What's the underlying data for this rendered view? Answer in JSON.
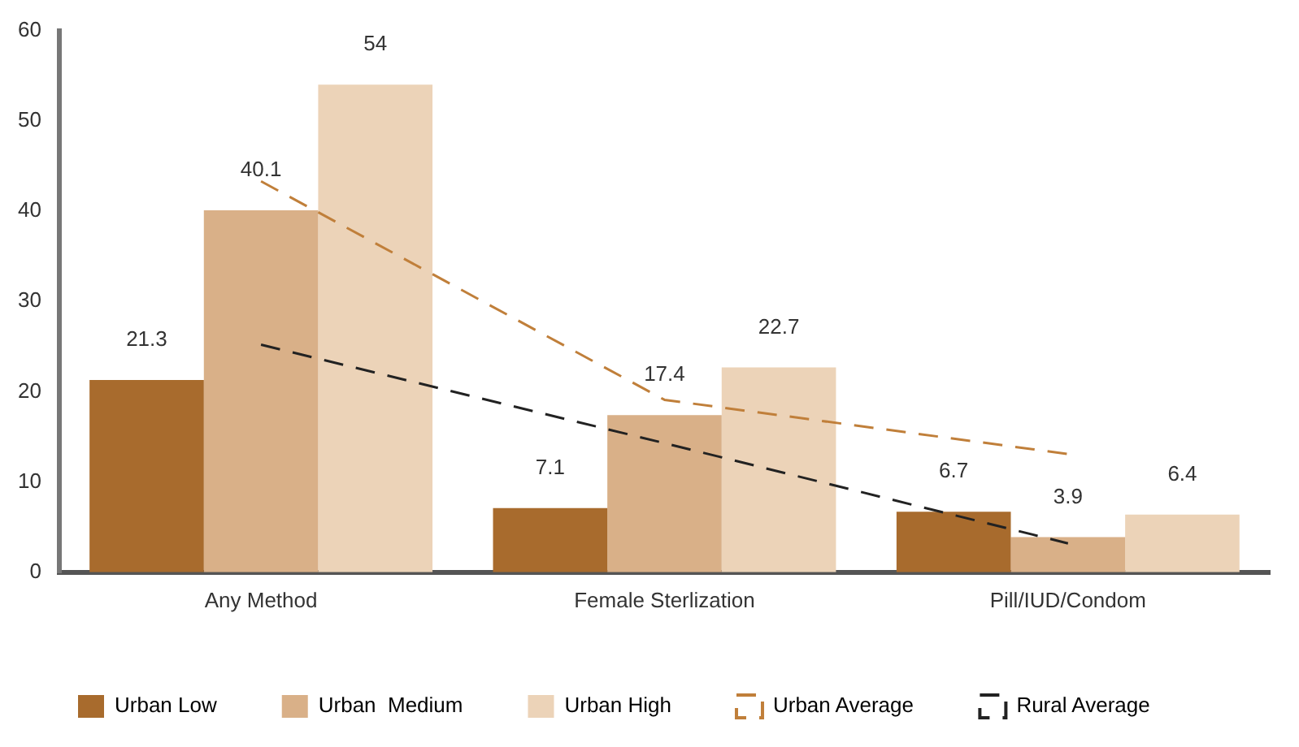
{
  "chart_data": {
    "type": "bar",
    "categories": [
      "Any Method",
      "Female Sterlization",
      "Pill/IUD/Condom"
    ],
    "series": [
      {
        "name": "Urban Low",
        "color": "#a86b2d",
        "values": [
          21.3,
          7.1,
          6.7
        ],
        "value_labels": [
          "21.3",
          "7.1",
          "6.7"
        ]
      },
      {
        "name": "Urban  Medium",
        "color": "#d9b088",
        "values": [
          40.1,
          17.4,
          3.9
        ],
        "value_labels": [
          "40.1",
          "17.4",
          "3.9"
        ]
      },
      {
        "name": "Urban High",
        "color": "#ecd3b8",
        "values": [
          54,
          22.7,
          6.4
        ],
        "value_labels": [
          "54",
          "22.7",
          "6.4"
        ]
      },
      {
        "name": "Urban Average",
        "type": "line",
        "color": "#c07f3a",
        "values": [
          43.3,
          19.1,
          13.1
        ],
        "line_style": "dashed"
      },
      {
        "name": "Rural Average",
        "type": "line",
        "color": "#222222",
        "values": [
          25.2,
          14.3,
          3.2
        ],
        "line_style": "dashed"
      }
    ],
    "ylim": [
      0,
      60
    ],
    "yticks": [
      0,
      10,
      20,
      30,
      40,
      50,
      60
    ],
    "grid": false,
    "legend": "bottom",
    "marker": "none"
  }
}
